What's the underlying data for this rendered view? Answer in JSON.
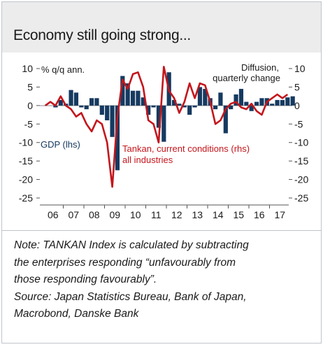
{
  "title": "Economy still going strong...",
  "colors": {
    "gdp": "#163a60",
    "tankan": "#c4161c",
    "title_band": "#ececec",
    "zero_line": "#8a8a8a"
  },
  "chart_data": {
    "type": "bar",
    "left_axis_label": "% q/q ann.",
    "right_axis_label_line1": "Diffusion,",
    "right_axis_label_line2": "quarterly change",
    "yticks_left": [
      "10",
      "5",
      "0",
      "-5",
      "-10",
      "-15",
      "-20",
      "-25"
    ],
    "yticks_right": [
      "10",
      "5",
      "0",
      "-5",
      "-10",
      "-15",
      "-20",
      "-25"
    ],
    "ylim": [
      -25,
      10
    ],
    "x_tick_labels": [
      "06",
      "07",
      "08",
      "09",
      "10",
      "11",
      "12",
      "13",
      "14",
      "15",
      "16",
      "17"
    ],
    "series": [
      {
        "name": "GDP (lhs)",
        "type": "bar",
        "axis": "left",
        "values": [
          -0.5,
          1.5,
          0.5,
          4.2,
          3.5,
          -0.5,
          -1.0,
          2.0,
          2.0,
          -2.5,
          -4.0,
          -8.5,
          -17.5,
          8.0,
          6.0,
          4.0,
          4.0,
          2.2,
          -2.5,
          -0.5,
          -6.0,
          -9.8,
          9.0,
          1.5,
          0.5,
          -0.5,
          -2.5,
          -0.5,
          5.0,
          4.5,
          2.0,
          -1.0,
          3.5,
          -7.5,
          -1.0,
          3.0,
          4.5,
          1.0,
          -1.5,
          1.0,
          2.0,
          2.0,
          0.5,
          1.5,
          1.5,
          2.2,
          2.5
        ]
      },
      {
        "name": "Tankan, current conditions (rhs) all industries",
        "type": "line",
        "axis": "right",
        "values": [
          0.0,
          1.0,
          0.0,
          2.5,
          0.0,
          -1.0,
          -3.0,
          -2.0,
          -5.0,
          -7.0,
          -4.0,
          -5.0,
          -10.0,
          -22.0,
          -3.0,
          7.0,
          4.5,
          8.5,
          9.0,
          5.0,
          -4.0,
          -5.0,
          -10.0,
          10.5,
          4.0,
          2.0,
          -2.0,
          1.0,
          6.0,
          2.0,
          6.0,
          5.5,
          1.0,
          -5.0,
          -4.0,
          -1.0,
          0.5,
          1.0,
          -0.5,
          -1.0,
          0.5,
          -1.5,
          -2.5,
          1.0,
          2.0,
          3.0,
          2.0,
          3.0
        ]
      }
    ],
    "annotations": [
      {
        "id": "gdp_label",
        "text": "GDP (lhs)"
      },
      {
        "id": "tankan_label_1",
        "text": "Tankan, current conditions (rhs)"
      },
      {
        "id": "tankan_label_2",
        "text": "all industries"
      }
    ]
  },
  "note_lines": [
    "Note: TANKAN Index is calculated by subtracting",
    "the enterprises responding “unfavourably from",
    "those responding favourably”.",
    "Source: Japan Statistics Bureau, Bank of Japan,",
    "Macrobond, Danske Bank"
  ]
}
